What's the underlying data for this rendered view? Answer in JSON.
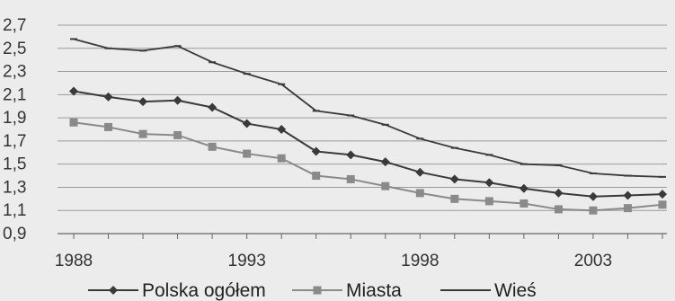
{
  "chart_data": {
    "type": "line",
    "x": [
      1988,
      1989,
      1990,
      1991,
      1992,
      1993,
      1994,
      1995,
      1996,
      1997,
      1998,
      1999,
      2000,
      2001,
      2002,
      2003,
      2004,
      2005
    ],
    "x_tick_labels": [
      "1988",
      "1993",
      "1998",
      "2003"
    ],
    "y_tick_labels": [
      "0,9",
      "1,1",
      "1,3",
      "1,5",
      "1,7",
      "1,9",
      "2,1",
      "2,3",
      "2,5",
      "2,7"
    ],
    "ylim": [
      0.9,
      2.7
    ],
    "grid": "horizontal",
    "legend_position": "bottom",
    "series": [
      {
        "name": "Polska ogółem",
        "color": "#3a3a3a",
        "marker": "diamond",
        "values": [
          2.13,
          2.08,
          2.04,
          2.05,
          1.99,
          1.85,
          1.8,
          1.61,
          1.58,
          1.52,
          1.43,
          1.37,
          1.34,
          1.29,
          1.25,
          1.22,
          1.23,
          1.24
        ]
      },
      {
        "name": "Miasta",
        "color": "#8a8a8a",
        "marker": "square",
        "values": [
          1.86,
          1.82,
          1.76,
          1.75,
          1.65,
          1.59,
          1.55,
          1.4,
          1.37,
          1.31,
          1.25,
          1.2,
          1.18,
          1.16,
          1.11,
          1.1,
          1.12,
          1.15
        ]
      },
      {
        "name": "Wieś",
        "color": "#3a3a3a",
        "marker": "dash",
        "values": [
          2.58,
          2.5,
          2.48,
          2.52,
          2.38,
          2.28,
          2.19,
          1.96,
          1.92,
          1.84,
          1.72,
          1.64,
          1.58,
          1.5,
          1.49,
          1.42,
          1.4,
          1.39
        ]
      }
    ]
  }
}
